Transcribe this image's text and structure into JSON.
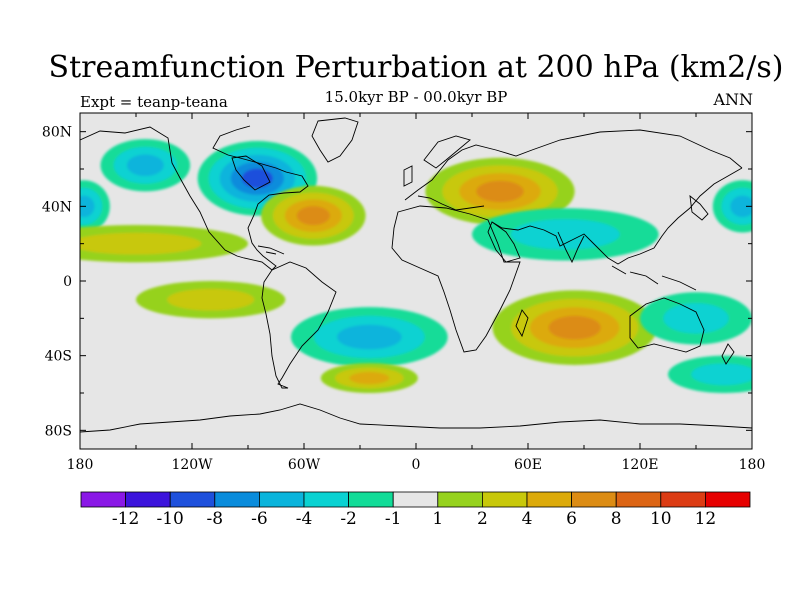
{
  "figure": {
    "title": "Streamfunction Perturbation at 200 hPa (km2/s)",
    "subtitle": "15.0kyr BP - 00.0kyr BP",
    "left_label": "Expt = teanp-teana",
    "right_label": "ANN"
  },
  "axes": {
    "lat_ticks": [
      {
        "value": 80,
        "label": "80N"
      },
      {
        "value": 40,
        "label": "40N"
      },
      {
        "value": 0,
        "label": "0"
      },
      {
        "value": -40,
        "label": "40S"
      },
      {
        "value": -80,
        "label": "80S"
      }
    ],
    "lon_ticks": [
      {
        "value": -180,
        "label": "180"
      },
      {
        "value": -120,
        "label": "120W"
      },
      {
        "value": -60,
        "label": "60W"
      },
      {
        "value": 0,
        "label": "0"
      },
      {
        "value": 60,
        "label": "60E"
      },
      {
        "value": 120,
        "label": "120E"
      },
      {
        "value": 180,
        "label": "180"
      }
    ],
    "lon_range": [
      -180,
      180
    ],
    "lat_range": [
      -90,
      90
    ]
  },
  "colorbar": {
    "colors": [
      "#8a18e6",
      "#3c14dc",
      "#1e50dc",
      "#0a8cdc",
      "#0ab4dc",
      "#0ad2d2",
      "#12dc98",
      "#e6e6e6",
      "#96d21e",
      "#c8c80a",
      "#dcaa0a",
      "#dc8c14",
      "#dc6414",
      "#dc3c14",
      "#e60000"
    ],
    "labels": [
      "-12",
      "-10",
      "-8",
      "-6",
      "-4",
      "-2",
      "-1",
      "1",
      "2",
      "4",
      "6",
      "8",
      "10",
      "12"
    ]
  },
  "chart_data": {
    "type": "contour-map",
    "variable": "200 hPa streamfunction perturbation",
    "units": "km2/s",
    "levels": [
      -12,
      -10,
      -8,
      -6,
      -4,
      -2,
      -1,
      1,
      2,
      4,
      6,
      8,
      10,
      12
    ],
    "lon_range": [
      -180,
      180
    ],
    "lat_range": [
      -90,
      90
    ],
    "features": [
      {
        "name": "North American low",
        "lon": -85,
        "lat": 55,
        "value": -8
      },
      {
        "name": "Northwest Pacific/Alaska low",
        "lon": -145,
        "lat": 62,
        "value": -4
      },
      {
        "name": "Central Pacific low",
        "lon": -178,
        "lat": 40,
        "value": -4
      },
      {
        "name": "Western Pacific low",
        "lon": 175,
        "lat": 40,
        "value": -4
      },
      {
        "name": "Western North Atlantic high",
        "lon": -55,
        "lat": 35,
        "value": 6
      },
      {
        "name": "Eurasian high",
        "lon": 45,
        "lat": 48,
        "value": 6
      },
      {
        "name": "Tropical Pacific high band",
        "lon": -150,
        "lat": 20,
        "value": 2
      },
      {
        "name": "Indian Ocean/Asia low",
        "lon": 80,
        "lat": 25,
        "value": -2
      },
      {
        "name": "South Atlantic low",
        "lon": -25,
        "lat": -30,
        "value": -4
      },
      {
        "name": "Eastern South Pacific high",
        "lon": -110,
        "lat": -10,
        "value": 2
      },
      {
        "name": "South Indian Ocean high",
        "lon": 85,
        "lat": -25,
        "value": 6
      },
      {
        "name": "Southern Ocean high",
        "lon": -25,
        "lat": -52,
        "value": 4
      },
      {
        "name": "Australian/Tasman low",
        "lon": 150,
        "lat": -20,
        "value": -2
      },
      {
        "name": "Southern Pacific low",
        "lon": 165,
        "lat": -50,
        "value": -2
      }
    ]
  }
}
